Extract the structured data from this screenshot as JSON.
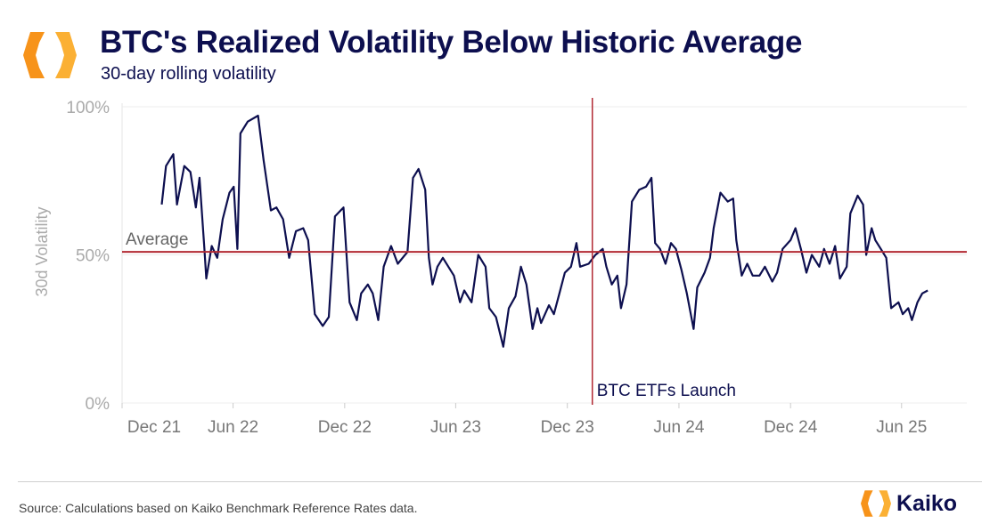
{
  "header": {
    "title": "BTC's Realized Volatility Below Historic Average",
    "subtitle": "30-day rolling volatility",
    "logo_icon": "kaiko-hexagon-logo-icon"
  },
  "footer": {
    "source": "Source: Calculations based on Kaiko Benchmark Reference Rates data.",
    "brand": "Kaiko"
  },
  "colors": {
    "line": "#0d0f4f",
    "reference": "#b22a33",
    "logo_orange": "#f7931a",
    "title": "#0d0f4f"
  },
  "chart_data": {
    "type": "line",
    "title": "",
    "xlabel": "",
    "ylabel": "30d Volatility",
    "ylim": [
      0,
      100
    ],
    "yticks": [
      {
        "value": 0,
        "label": "0%"
      },
      {
        "value": 50,
        "label": "50%"
      },
      {
        "value": 100,
        "label": "100%"
      }
    ],
    "xlim": [
      "2021-12-01",
      "2025-09-16"
    ],
    "xticks": [
      {
        "date": "2021-12-01",
        "label": "Dec 21"
      },
      {
        "date": "2022-06-01",
        "label": "Jun 22"
      },
      {
        "date": "2022-12-01",
        "label": "Dec 22"
      },
      {
        "date": "2023-06-01",
        "label": "Jun 23"
      },
      {
        "date": "2023-12-01",
        "label": "Dec 23"
      },
      {
        "date": "2024-06-01",
        "label": "Jun 24"
      },
      {
        "date": "2024-12-01",
        "label": "Dec 24"
      },
      {
        "date": "2025-06-01",
        "label": "Jun 25"
      }
    ],
    "grid": "horizontal",
    "average": {
      "value": 51,
      "label": "Average"
    },
    "event": {
      "date": "2024-01-11",
      "label": "BTC ETFs Launch"
    },
    "series": [
      {
        "points": [
          [
            "2022-02-04",
            67
          ],
          [
            "2022-02-11",
            80
          ],
          [
            "2022-02-23",
            84
          ],
          [
            "2022-03-01",
            67
          ],
          [
            "2022-03-13",
            80
          ],
          [
            "2022-03-23",
            78
          ],
          [
            "2022-04-01",
            66
          ],
          [
            "2022-04-07",
            76
          ],
          [
            "2022-04-15",
            52
          ],
          [
            "2022-04-18",
            42
          ],
          [
            "2022-04-27",
            53
          ],
          [
            "2022-05-06",
            49
          ],
          [
            "2022-05-15",
            62
          ],
          [
            "2022-05-26",
            71
          ],
          [
            "2022-06-02",
            73
          ],
          [
            "2022-06-08",
            52
          ],
          [
            "2022-06-13",
            91
          ],
          [
            "2022-06-25",
            95
          ],
          [
            "2022-07-12",
            97
          ],
          [
            "2022-07-21",
            82
          ],
          [
            "2022-08-02",
            65
          ],
          [
            "2022-08-11",
            66
          ],
          [
            "2022-08-22",
            62
          ],
          [
            "2022-09-01",
            49
          ],
          [
            "2022-09-12",
            58
          ],
          [
            "2022-09-24",
            59
          ],
          [
            "2022-10-02",
            55
          ],
          [
            "2022-10-13",
            30
          ],
          [
            "2022-10-26",
            26
          ],
          [
            "2022-11-05",
            29
          ],
          [
            "2022-11-15",
            63
          ],
          [
            "2022-11-29",
            66
          ],
          [
            "2022-12-09",
            34
          ],
          [
            "2022-12-21",
            28
          ],
          [
            "2022-12-28",
            37
          ],
          [
            "2023-01-08",
            40
          ],
          [
            "2023-01-16",
            37
          ],
          [
            "2023-01-25",
            28
          ],
          [
            "2023-02-03",
            46
          ],
          [
            "2023-02-15",
            53
          ],
          [
            "2023-02-26",
            47
          ],
          [
            "2023-03-14",
            51
          ],
          [
            "2023-03-23",
            76
          ],
          [
            "2023-04-01",
            79
          ],
          [
            "2023-04-12",
            72
          ],
          [
            "2023-04-18",
            49
          ],
          [
            "2023-04-24",
            40
          ],
          [
            "2023-05-02",
            46
          ],
          [
            "2023-05-11",
            49
          ],
          [
            "2023-05-29",
            43
          ],
          [
            "2023-06-08",
            34
          ],
          [
            "2023-06-15",
            38
          ],
          [
            "2023-06-27",
            34
          ],
          [
            "2023-07-08",
            50
          ],
          [
            "2023-07-20",
            46
          ],
          [
            "2023-07-26",
            32
          ],
          [
            "2023-08-06",
            29
          ],
          [
            "2023-08-18",
            19
          ],
          [
            "2023-08-27",
            32
          ],
          [
            "2023-09-07",
            36
          ],
          [
            "2023-09-16",
            46
          ],
          [
            "2023-09-25",
            40
          ],
          [
            "2023-10-05",
            25
          ],
          [
            "2023-10-13",
            32
          ],
          [
            "2023-10-19",
            27
          ],
          [
            "2023-11-01",
            33
          ],
          [
            "2023-11-09",
            30
          ],
          [
            "2023-11-18",
            37
          ],
          [
            "2023-11-27",
            44
          ],
          [
            "2023-12-07",
            46
          ],
          [
            "2023-12-16",
            54
          ],
          [
            "2023-12-22",
            46
          ],
          [
            "2024-01-05",
            47
          ],
          [
            "2024-01-16",
            50
          ],
          [
            "2024-01-28",
            52
          ],
          [
            "2024-02-03",
            46
          ],
          [
            "2024-02-12",
            40
          ],
          [
            "2024-02-21",
            43
          ],
          [
            "2024-02-27",
            32
          ],
          [
            "2024-03-07",
            40
          ],
          [
            "2024-03-16",
            68
          ],
          [
            "2024-03-28",
            72
          ],
          [
            "2024-04-08",
            73
          ],
          [
            "2024-04-17",
            76
          ],
          [
            "2024-04-23",
            54
          ],
          [
            "2024-05-01",
            52
          ],
          [
            "2024-05-10",
            47
          ],
          [
            "2024-05-19",
            54
          ],
          [
            "2024-05-27",
            52
          ],
          [
            "2024-06-05",
            45
          ],
          [
            "2024-06-14",
            37
          ],
          [
            "2024-06-25",
            25
          ],
          [
            "2024-07-01",
            39
          ],
          [
            "2024-07-13",
            44
          ],
          [
            "2024-07-22",
            49
          ],
          [
            "2024-07-28",
            59
          ],
          [
            "2024-08-08",
            71
          ],
          [
            "2024-08-20",
            68
          ],
          [
            "2024-08-29",
            69
          ],
          [
            "2024-09-03",
            55
          ],
          [
            "2024-09-12",
            43
          ],
          [
            "2024-09-21",
            47
          ],
          [
            "2024-09-30",
            43
          ],
          [
            "2024-10-11",
            43
          ],
          [
            "2024-10-20",
            46
          ],
          [
            "2024-11-01",
            41
          ],
          [
            "2024-11-09",
            44
          ],
          [
            "2024-11-18",
            52
          ],
          [
            "2024-12-01",
            55
          ],
          [
            "2024-12-09",
            59
          ],
          [
            "2024-12-18",
            52
          ],
          [
            "2024-12-27",
            44
          ],
          [
            "2025-01-05",
            50
          ],
          [
            "2025-01-17",
            46
          ],
          [
            "2025-01-25",
            52
          ],
          [
            "2025-02-03",
            47
          ],
          [
            "2025-02-12",
            53
          ],
          [
            "2025-02-20",
            42
          ],
          [
            "2025-03-03",
            46
          ],
          [
            "2025-03-09",
            64
          ],
          [
            "2025-03-21",
            70
          ],
          [
            "2025-03-30",
            67
          ],
          [
            "2025-04-04",
            50
          ],
          [
            "2025-04-13",
            59
          ],
          [
            "2025-04-19",
            55
          ],
          [
            "2025-04-28",
            52
          ],
          [
            "2025-05-07",
            49
          ],
          [
            "2025-05-15",
            32
          ],
          [
            "2025-05-27",
            34
          ],
          [
            "2025-06-03",
            30
          ],
          [
            "2025-06-12",
            32
          ],
          [
            "2025-06-18",
            28
          ],
          [
            "2025-06-27",
            34
          ],
          [
            "2025-07-05",
            37
          ],
          [
            "2025-07-14",
            38
          ]
        ]
      }
    ]
  }
}
